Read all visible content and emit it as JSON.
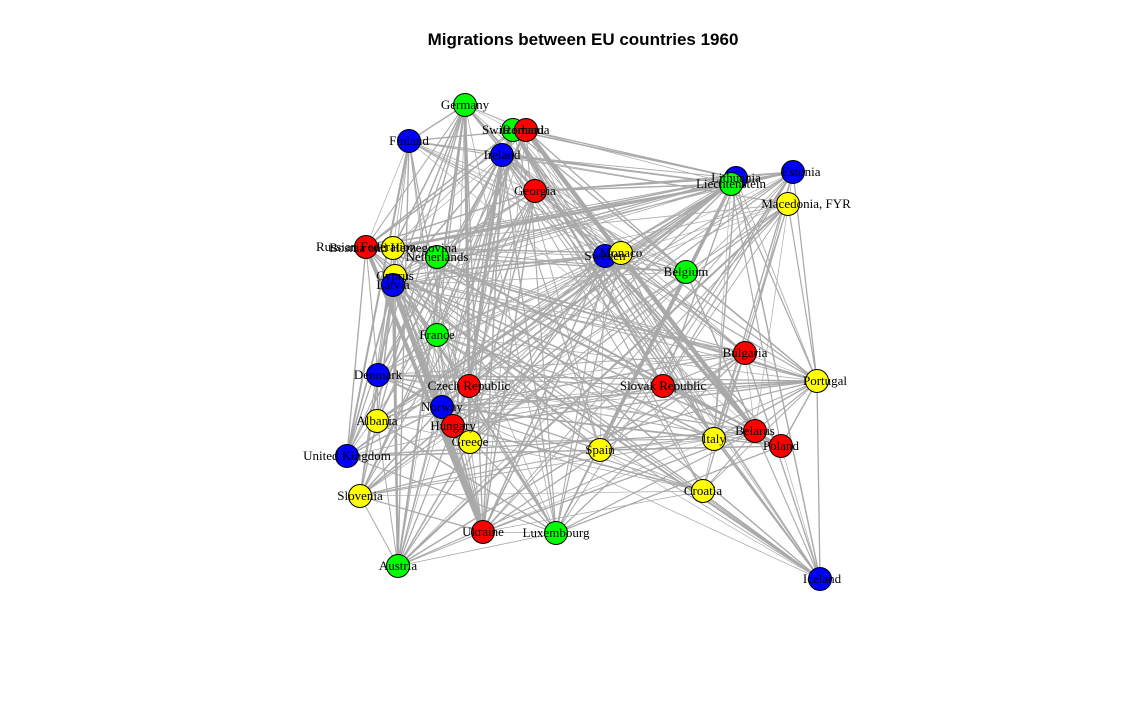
{
  "title": "Migrations between EU countries 1960",
  "colors": {
    "edge": "#a9a9a9",
    "red": "#ff0000",
    "green": "#00ff00",
    "blue": "#0000ff",
    "yellow": "#ffff00",
    "node_border": "#000000"
  },
  "nodes": [
    {
      "id": "germany",
      "label": "Germany",
      "color": "green"
    },
    {
      "id": "switzerland",
      "label": "Switzerland",
      "color": "green"
    },
    {
      "id": "romania",
      "label": "Romania",
      "color": "red"
    },
    {
      "id": "finland",
      "label": "Finland",
      "color": "blue"
    },
    {
      "id": "ireland",
      "label": "Ireland",
      "color": "blue"
    },
    {
      "id": "georgia",
      "label": "Georgia",
      "color": "red"
    },
    {
      "id": "lithuania",
      "label": "Lithuania",
      "color": "blue"
    },
    {
      "id": "liechtenstein",
      "label": "Liechtenstein",
      "color": "green"
    },
    {
      "id": "estonia",
      "label": "Estonia",
      "color": "blue"
    },
    {
      "id": "macedonia",
      "label": "Macedonia, FYR",
      "color": "yellow"
    },
    {
      "id": "russia",
      "label": "Russian Federation",
      "color": "red"
    },
    {
      "id": "bosnia",
      "label": "Bosnia and Herzegovina",
      "color": "yellow"
    },
    {
      "id": "netherlands",
      "label": "Netherlands",
      "color": "green"
    },
    {
      "id": "sweden",
      "label": "Sweden",
      "color": "blue"
    },
    {
      "id": "monaco",
      "label": "Monaco",
      "color": "yellow"
    },
    {
      "id": "belgium",
      "label": "Belgium",
      "color": "green"
    },
    {
      "id": "cyprus",
      "label": "Cyprus",
      "color": "yellow"
    },
    {
      "id": "latvia",
      "label": "Latvia",
      "color": "blue"
    },
    {
      "id": "france",
      "label": "France",
      "color": "green"
    },
    {
      "id": "bulgaria",
      "label": "Bulgaria",
      "color": "red"
    },
    {
      "id": "denmark",
      "label": "Denmark",
      "color": "blue"
    },
    {
      "id": "czech",
      "label": "Czech Republic",
      "color": "red"
    },
    {
      "id": "slovak",
      "label": "Slovak Republic",
      "color": "red"
    },
    {
      "id": "portugal",
      "label": "Portugal",
      "color": "yellow"
    },
    {
      "id": "norway",
      "label": "Norway",
      "color": "blue"
    },
    {
      "id": "albania",
      "label": "Albania",
      "color": "yellow"
    },
    {
      "id": "hungary",
      "label": "Hungary",
      "color": "red"
    },
    {
      "id": "greece",
      "label": "Greece",
      "color": "yellow"
    },
    {
      "id": "belarus",
      "label": "Belarus",
      "color": "red"
    },
    {
      "id": "italy",
      "label": "Italy",
      "color": "yellow"
    },
    {
      "id": "poland",
      "label": "Poland",
      "color": "red"
    },
    {
      "id": "spain",
      "label": "Spain",
      "color": "yellow"
    },
    {
      "id": "uk",
      "label": "United Kingdom",
      "color": "blue"
    },
    {
      "id": "croatia",
      "label": "Croatia",
      "color": "yellow"
    },
    {
      "id": "slovenia",
      "label": "Slovenia",
      "color": "yellow"
    },
    {
      "id": "ukraine",
      "label": "Ukraine",
      "color": "red"
    },
    {
      "id": "luxembourg",
      "label": "Luxembourg",
      "color": "green"
    },
    {
      "id": "austria",
      "label": "Austria",
      "color": "green"
    },
    {
      "id": "iceland",
      "label": "Iceland",
      "color": "blue"
    }
  ]
}
